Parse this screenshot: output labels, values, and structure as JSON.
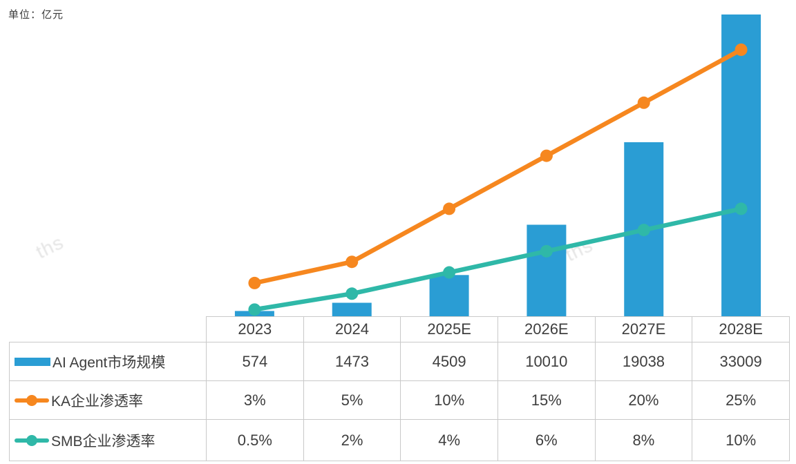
{
  "unit_label": "单位：亿元",
  "watermark": "ths",
  "colors": {
    "bar": "#2a9dd4",
    "ka_line": "#f6871f",
    "smb_line": "#2fb8a8",
    "text": "#3e3e3e",
    "border": "#c9c9c9",
    "watermark": "#e5e5e5"
  },
  "chart_data": {
    "type": "bar",
    "note": "combined bar + two percentage lines, no visible axes, values shown in table below",
    "categories": [
      "2023",
      "2024",
      "2025E",
      "2026E",
      "2027E",
      "2028E"
    ],
    "series": [
      {
        "name": "AI Agent市场规模",
        "type": "bar",
        "unit": "亿元",
        "values": [
          574,
          1473,
          4509,
          10010,
          19038,
          33009
        ],
        "color": "#2a9dd4"
      },
      {
        "name": "KA企业渗透率",
        "type": "line",
        "unit": "%",
        "values": [
          3,
          5,
          10,
          15,
          20,
          25
        ],
        "color": "#f6871f"
      },
      {
        "name": "SMB企业渗透率",
        "type": "line",
        "unit": "%",
        "values": [
          0.5,
          2,
          4,
          6,
          8,
          10
        ],
        "color": "#2fb8a8"
      }
    ],
    "title": "",
    "xlabel": "",
    "ylabel": "单位：亿元",
    "bar_axis_range": [
      0,
      33009
    ],
    "pct_axis_range": [
      0,
      28.4
    ],
    "grid": false,
    "legend_position": "table-left-column"
  },
  "table": {
    "header": [
      "2023",
      "2024",
      "2025E",
      "2026E",
      "2027E",
      "2028E"
    ],
    "rows": [
      {
        "label": "AI Agent市场规模",
        "marker": "bar-swatch",
        "values": [
          "574",
          "1473",
          "4509",
          "10010",
          "19038",
          "33009"
        ]
      },
      {
        "label": "KA企业渗透率",
        "marker": "orange-line-dot",
        "values": [
          "3%",
          "5%",
          "10%",
          "15%",
          "20%",
          "25%"
        ]
      },
      {
        "label": "SMB企业渗透率",
        "marker": "teal-line-dot",
        "values": [
          "0.5%",
          "2%",
          "4%",
          "6%",
          "8%",
          "10%"
        ]
      }
    ]
  }
}
